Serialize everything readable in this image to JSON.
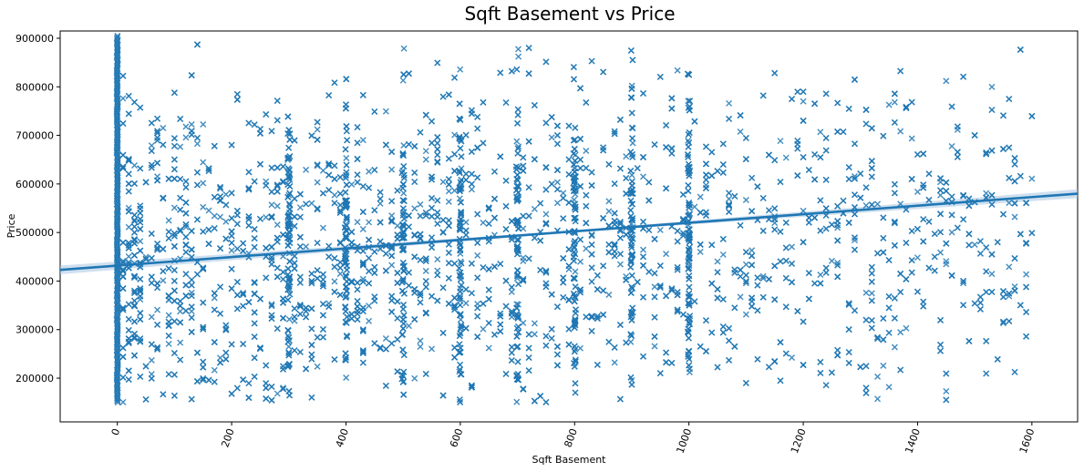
{
  "chart_data": {
    "type": "scatter",
    "title": "Sqft Basement vs Price",
    "xlabel": "Sqft Basement",
    "ylabel": "Price",
    "xlim": [
      -100,
      1680
    ],
    "ylim": [
      110000,
      915000
    ],
    "xticks": [
      0,
      200,
      400,
      600,
      800,
      1000,
      1200,
      1400,
      1600
    ],
    "xtick_labels": [
      "0",
      "200",
      "400",
      "600",
      "800",
      "1000",
      "1200",
      "1400",
      "1600"
    ],
    "xtick_rotation": -70,
    "yticks": [
      200000,
      300000,
      400000,
      500000,
      600000,
      700000,
      800000,
      900000
    ],
    "ytick_labels": [
      "200000",
      "300000",
      "400000",
      "500000",
      "600000",
      "700000",
      "800000",
      "900000"
    ],
    "marker": "x",
    "grid": false,
    "colors": {
      "points": "#1f77b4",
      "line": "#1f77b4",
      "ci_band": "#a9c6e2"
    },
    "regression": {
      "x": [
        -100,
        1680
      ],
      "y": [
        423000,
        580000
      ],
      "ci_halfwidth_at_end": 9000
    },
    "scatter": {
      "zero_column": {
        "x": 0,
        "y_range": [
          150000,
          905000
        ],
        "count": 260
      },
      "point_count_estimate": 4200,
      "x_range": [
        10,
        1600
      ],
      "y_range": [
        150000,
        900000
      ],
      "dense_x_columns": [
        300,
        400,
        500,
        600,
        700,
        800,
        900,
        1000
      ],
      "density_note": "densest between 300 and 1000; sparse above 1200"
    }
  }
}
